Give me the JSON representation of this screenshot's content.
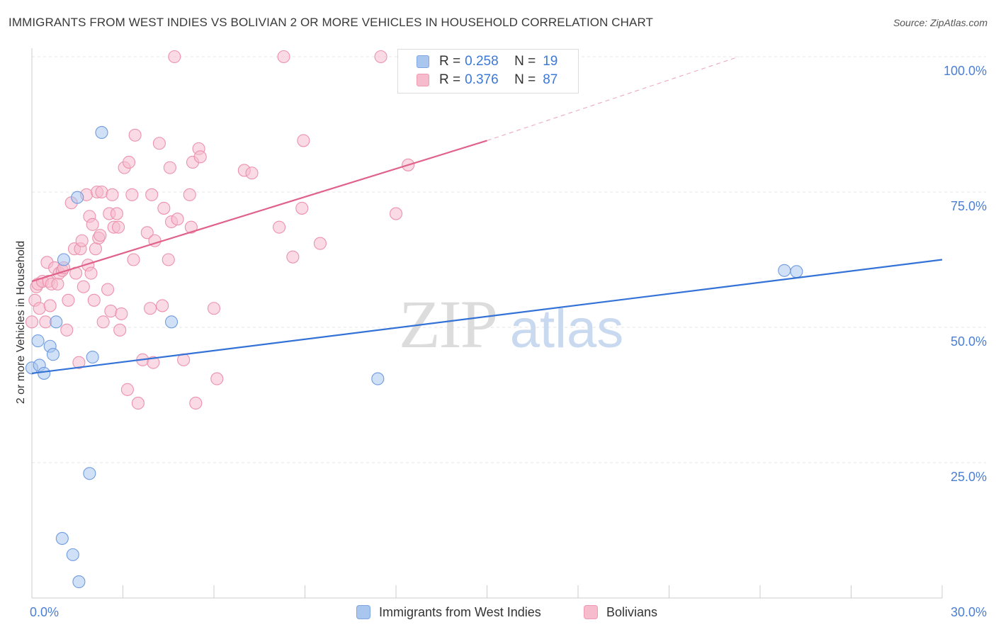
{
  "title": "IMMIGRANTS FROM WEST INDIES VS BOLIVIAN 2 OR MORE VEHICLES IN HOUSEHOLD CORRELATION CHART",
  "source": "Source: ZipAtlas.com",
  "watermark": {
    "zip": "ZIP",
    "atlas": "atlas"
  },
  "legend": {
    "rows": [
      {
        "r_label": "R =",
        "r_value": "0.258",
        "n_label": "N =",
        "n_value": "19",
        "color": "#a9c6ef",
        "stroke": "#7ea6e0"
      },
      {
        "r_label": "R =",
        "r_value": "0.376",
        "n_label": "N =",
        "n_value": "87",
        "color": "#f6bccd",
        "stroke": "#ef9ab3"
      }
    ]
  },
  "bottom_legend": {
    "west_indies": "Immigrants from West Indies",
    "bolivians": "Bolivians"
  },
  "colors": {
    "blue_fill": "#a9c6ef",
    "blue_stroke": "#6f9be0",
    "blue_line": "#3372d6",
    "pink_fill": "#f6bccd",
    "pink_stroke": "#ec92ae",
    "pink_line": "#e0628b",
    "grid": "#e4e4e4",
    "tick_label": "#4a7fd4",
    "axis": "#cccccc"
  },
  "chart_data": {
    "type": "scatter",
    "title": "IMMIGRANTS FROM WEST INDIES VS BOLIVIAN 2 OR MORE VEHICLES IN HOUSEHOLD CORRELATION CHART",
    "xlabel": "",
    "ylabel": "2 or more Vehicles in Household",
    "xlim": [
      0,
      30
    ],
    "ylim": [
      0,
      100
    ],
    "x_tick_labels": [
      {
        "value": 0,
        "label": "0.0%"
      },
      {
        "value": 30,
        "label": "30.0%"
      }
    ],
    "y_tick_labels": [
      {
        "value": 25,
        "label": "25.0%"
      },
      {
        "value": 50,
        "label": "50.0%"
      },
      {
        "value": 75,
        "label": "75.0%"
      },
      {
        "value": 100,
        "label": "100.0%"
      }
    ],
    "series": [
      {
        "name": "Immigrants from West Indies",
        "color": "blue",
        "points": [
          [
            0.0,
            42.5
          ],
          [
            0.2,
            47.5
          ],
          [
            0.25,
            43.0
          ],
          [
            0.4,
            41.5
          ],
          [
            0.6,
            46.5
          ],
          [
            0.7,
            45.0
          ],
          [
            0.8,
            51.0
          ],
          [
            1.0,
            11.0
          ],
          [
            1.05,
            62.5
          ],
          [
            1.35,
            8.0
          ],
          [
            1.5,
            74.0
          ],
          [
            1.55,
            3.0
          ],
          [
            1.9,
            23.0
          ],
          [
            2.0,
            44.5
          ],
          [
            2.3,
            86.0
          ],
          [
            4.6,
            51.0
          ],
          [
            11.4,
            40.5
          ],
          [
            24.8,
            60.5
          ],
          [
            25.2,
            60.3
          ]
        ],
        "trend": {
          "x": [
            0,
            30
          ],
          "y": [
            41.5,
            62.5
          ],
          "dashed": false
        }
      },
      {
        "name": "Bolivians",
        "color": "pink",
        "points": [
          [
            0.0,
            51.0
          ],
          [
            0.1,
            55.0
          ],
          [
            0.15,
            57.5
          ],
          [
            0.2,
            58.0
          ],
          [
            0.25,
            53.5
          ],
          [
            0.35,
            58.5
          ],
          [
            0.45,
            51.0
          ],
          [
            0.5,
            62.0
          ],
          [
            0.55,
            58.5
          ],
          [
            0.6,
            54.0
          ],
          [
            0.65,
            58.0
          ],
          [
            0.75,
            61.0
          ],
          [
            0.85,
            58.0
          ],
          [
            0.9,
            60.0
          ],
          [
            1.0,
            60.5
          ],
          [
            1.05,
            61.0
          ],
          [
            1.15,
            49.5
          ],
          [
            1.2,
            55.0
          ],
          [
            1.3,
            73.0
          ],
          [
            1.4,
            64.5
          ],
          [
            1.45,
            60.0
          ],
          [
            1.55,
            43.5
          ],
          [
            1.6,
            64.5
          ],
          [
            1.65,
            66.0
          ],
          [
            1.7,
            57.5
          ],
          [
            1.8,
            74.5
          ],
          [
            1.85,
            61.5
          ],
          [
            1.9,
            70.5
          ],
          [
            1.95,
            60.0
          ],
          [
            2.0,
            69.0
          ],
          [
            2.05,
            55.0
          ],
          [
            2.1,
            64.5
          ],
          [
            2.15,
            75.0
          ],
          [
            2.2,
            66.5
          ],
          [
            2.25,
            67.0
          ],
          [
            2.3,
            75.0
          ],
          [
            2.35,
            51.0
          ],
          [
            2.5,
            57.0
          ],
          [
            2.55,
            71.0
          ],
          [
            2.6,
            53.0
          ],
          [
            2.65,
            74.5
          ],
          [
            2.7,
            68.5
          ],
          [
            2.8,
            71.0
          ],
          [
            2.85,
            68.5
          ],
          [
            2.9,
            49.5
          ],
          [
            2.95,
            52.5
          ],
          [
            3.05,
            79.5
          ],
          [
            3.15,
            38.5
          ],
          [
            3.2,
            80.5
          ],
          [
            3.3,
            74.5
          ],
          [
            3.35,
            62.5
          ],
          [
            3.4,
            85.5
          ],
          [
            3.5,
            36.0
          ],
          [
            3.65,
            44.0
          ],
          [
            3.8,
            67.5
          ],
          [
            3.9,
            53.5
          ],
          [
            3.95,
            74.5
          ],
          [
            4.0,
            43.5
          ],
          [
            4.05,
            66.0
          ],
          [
            4.2,
            84.0
          ],
          [
            4.3,
            54.0
          ],
          [
            4.35,
            72.0
          ],
          [
            4.5,
            62.5
          ],
          [
            4.55,
            79.5
          ],
          [
            4.6,
            69.5
          ],
          [
            4.8,
            70.0
          ],
          [
            5.0,
            44.0
          ],
          [
            5.2,
            74.5
          ],
          [
            5.25,
            68.5
          ],
          [
            5.3,
            80.5
          ],
          [
            5.4,
            36.0
          ],
          [
            5.5,
            83.0
          ],
          [
            5.55,
            81.5
          ],
          [
            6.0,
            53.5
          ],
          [
            6.1,
            40.5
          ],
          [
            7.0,
            79.0
          ],
          [
            7.25,
            78.5
          ],
          [
            8.15,
            68.5
          ],
          [
            8.3,
            100.0
          ],
          [
            8.6,
            63.0
          ],
          [
            8.9,
            72.0
          ],
          [
            8.95,
            84.5
          ],
          [
            9.5,
            65.5
          ],
          [
            11.5,
            100.0
          ],
          [
            12.0,
            71.0
          ],
          [
            12.4,
            80.0
          ],
          [
            4.7,
            100.0
          ]
        ],
        "trend": {
          "x": [
            0,
            15
          ],
          "y": [
            58.5,
            84.5
          ],
          "dashed": false
        },
        "trend_extension": {
          "x": [
            15,
            23.3
          ],
          "y": [
            84.5,
            100.0
          ],
          "dashed": true
        }
      }
    ]
  }
}
